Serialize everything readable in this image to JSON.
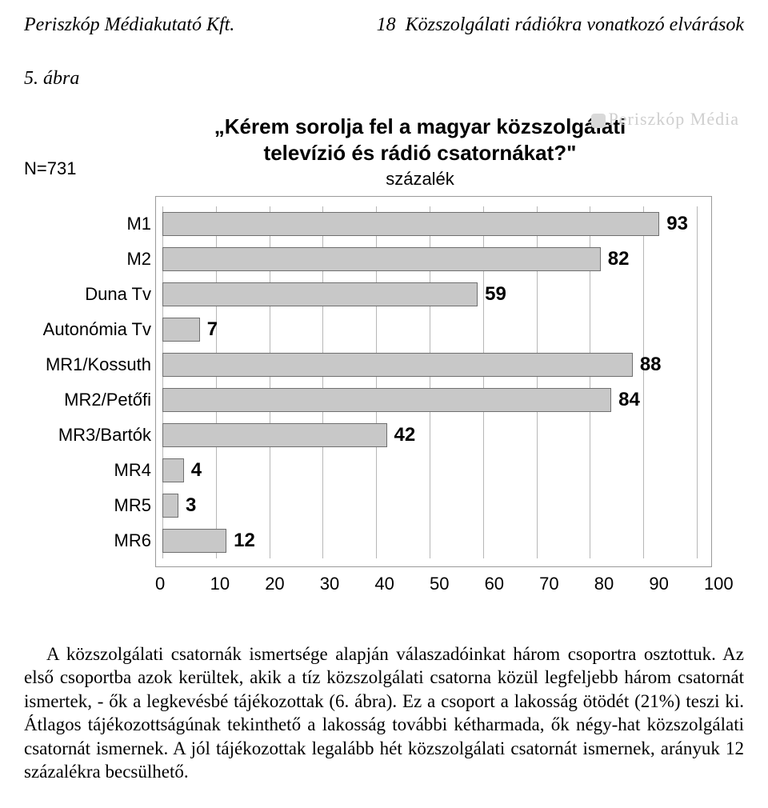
{
  "header": {
    "left": "Periszkóp Médiakutató Kft.",
    "page_num": "18",
    "right": "Közszolgálati rádiókra vonatkozó elvárások"
  },
  "figure_label": "5. ábra",
  "chart": {
    "type": "bar-horizontal",
    "n_label": "N=731",
    "title_line1": "„Kérem sorolja fel a magyar közszolgálati",
    "title_line2": "televízió és rádió csatornákat?\"",
    "subtitle": "százalék",
    "watermark": "Periszkóp Média",
    "xlim": [
      0,
      100
    ],
    "xtick_step": 10,
    "xticks": [
      "0",
      "10",
      "20",
      "30",
      "40",
      "50",
      "60",
      "70",
      "80",
      "90",
      "100"
    ],
    "bar_color": "#c8c8c8",
    "bar_border": "#6f6f6f",
    "grid_color": "#b7b7b7",
    "background_color": "#ffffff",
    "label_fontsize": 22,
    "value_fontsize": 24,
    "items": [
      {
        "label": "M1",
        "value": 93
      },
      {
        "label": "M2",
        "value": 82
      },
      {
        "label": "Duna Tv",
        "value": 59
      },
      {
        "label": "Autonómia Tv",
        "value": 7
      },
      {
        "label": "MR1/Kossuth",
        "value": 88
      },
      {
        "label": "MR2/Petőfi",
        "value": 84
      },
      {
        "label": "MR3/Bartók",
        "value": 42
      },
      {
        "label": "MR4",
        "value": 4
      },
      {
        "label": "MR5",
        "value": 3
      },
      {
        "label": "MR6",
        "value": 12
      }
    ]
  },
  "paragraph": "A közszolgálati csatornák ismertsége alapján válaszadóinkat három csoportra osztottuk. Az első csoportba azok kerültek, akik a tíz közszolgálati csatorna közül legfeljebb három csatornát ismertek, - ők a legkevésbé tájékozottak (6. ábra). Ez a csoport a lakosság ötödét (21%) teszi ki. Átlagos tájékozottságúnak tekinthető a lakosság további kétharmada, ők négy-hat közszolgálati csatornát ismernek. A jól tájékozottak legalább hét közszolgálati csatornát ismernek, arányuk 12 százalékra becsülhető."
}
